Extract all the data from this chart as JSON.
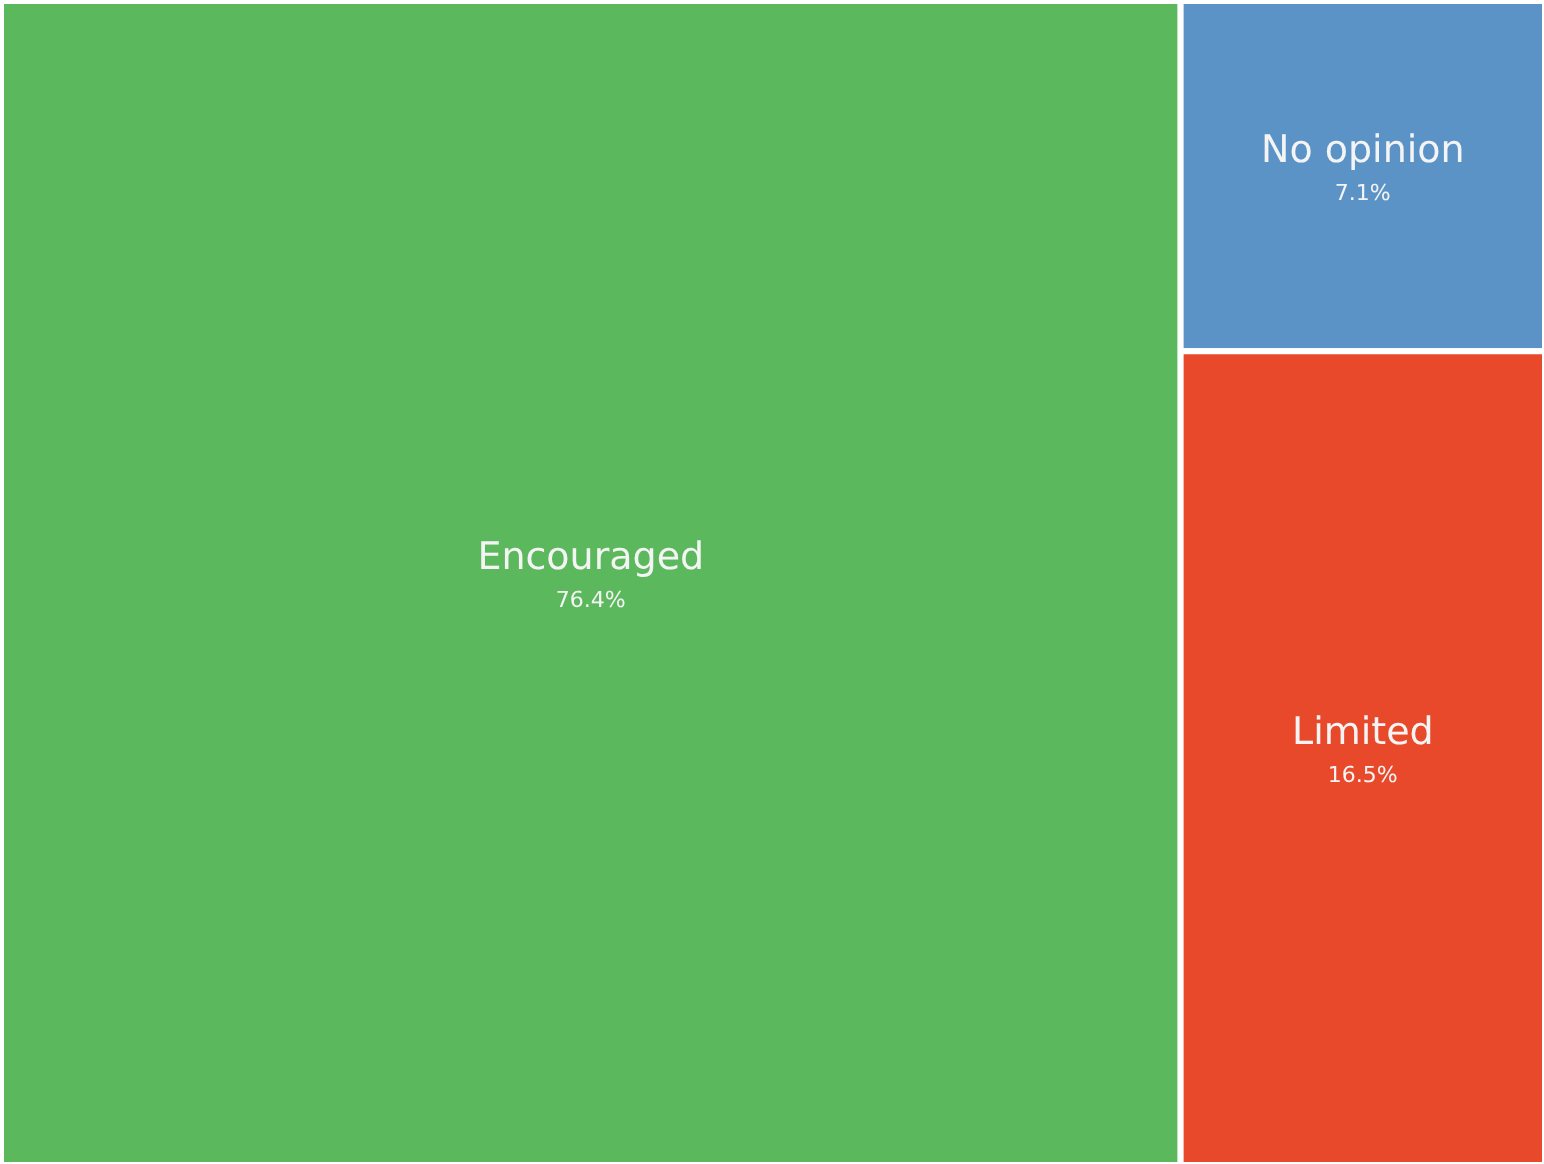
{
  "chart_data": {
    "type": "other",
    "categories": [
      "Encouraged",
      "No opinion",
      "Limited"
    ],
    "values": [
      76.4,
      7.1,
      16.5
    ],
    "value_labels": [
      "76.4%",
      "7.1%",
      "16.5%"
    ],
    "colors": [
      "#5cb85c",
      "#5b93c6",
      "#e8492a"
    ]
  }
}
